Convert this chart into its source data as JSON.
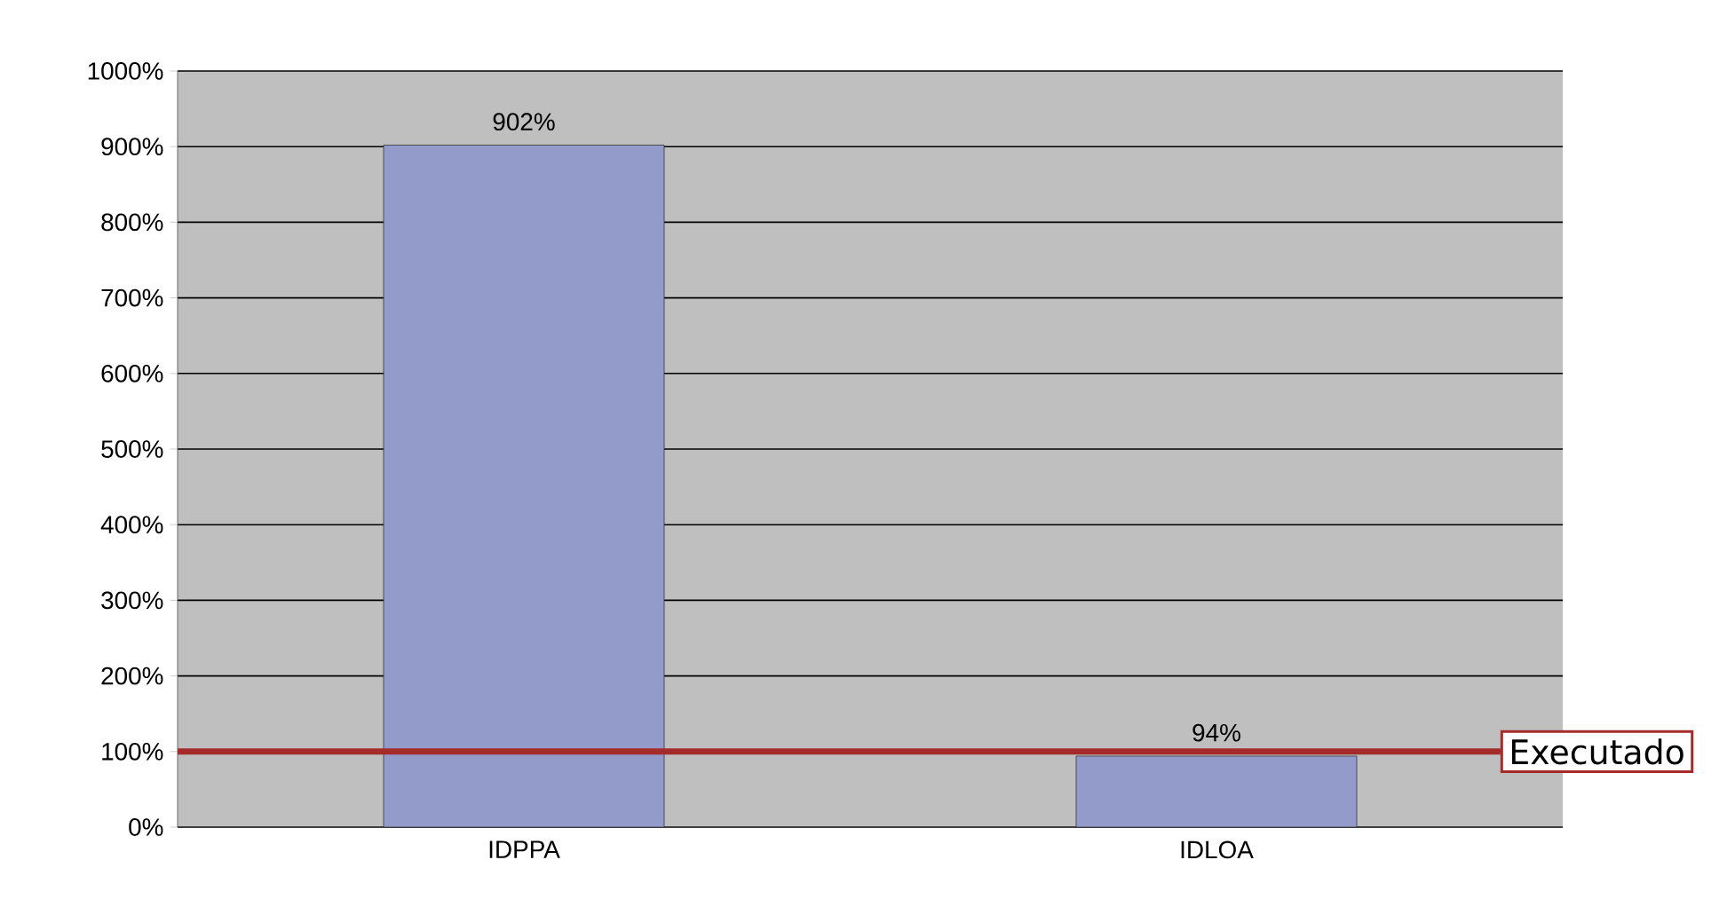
{
  "chart_data": {
    "type": "bar",
    "categories": [
      "IDPPA",
      "IDLOA"
    ],
    "values": [
      902,
      94
    ],
    "value_labels": [
      "902%",
      "94%"
    ],
    "color": "#939bcb",
    "ylim": [
      0,
      1000
    ],
    "yticks": [
      {
        "value": 0,
        "label": "0%"
      },
      {
        "value": 100,
        "label": "100%"
      },
      {
        "value": 200,
        "label": "200%"
      },
      {
        "value": 300,
        "label": "300%"
      },
      {
        "value": 400,
        "label": "400%"
      },
      {
        "value": 500,
        "label": "500%"
      },
      {
        "value": 600,
        "label": "600%"
      },
      {
        "value": 700,
        "label": "700%"
      },
      {
        "value": 800,
        "label": "800%"
      },
      {
        "value": 900,
        "label": "900%"
      },
      {
        "value": 1000,
        "label": "1000%"
      }
    ],
    "grid": "y",
    "ref_lines": [
      {
        "axis": "y",
        "value": 100,
        "label": "Executado",
        "color": "#a52a2a"
      }
    ]
  }
}
